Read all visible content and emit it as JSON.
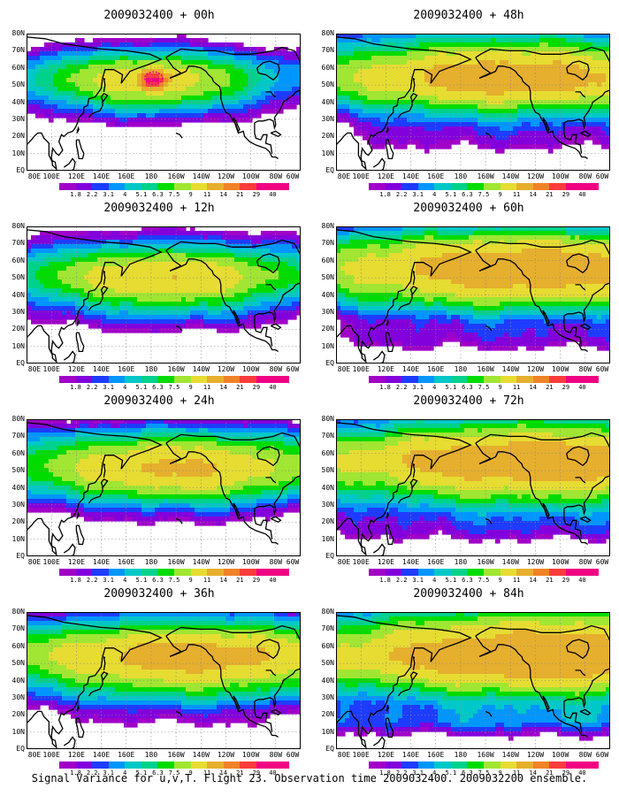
{
  "caption": "Signal Variance for u,v,T. Flight 23. Observation time 2009032400. 2009032200 ensemble.",
  "lat_labels": [
    "80N",
    "70N",
    "60N",
    "50N",
    "40N",
    "30N",
    "20N",
    "10N",
    "EQ"
  ],
  "lon_labels": [
    "80E",
    "100E",
    "120E",
    "140E",
    "160E",
    "180",
    "160W",
    "140W",
    "120W",
    "100W",
    "80W",
    "60W"
  ],
  "colorbar_labels": [
    "1.8",
    "2.2",
    "3.1",
    "4",
    "5.1",
    "6.3",
    "7.5",
    "9",
    "11",
    "14",
    "21",
    "29",
    "40"
  ],
  "colorbar_colors": [
    "#a000c8",
    "#8200dc",
    "#1e3cff",
    "#0096ff",
    "#00c8c8",
    "#00d28c",
    "#00dc00",
    "#a0e632",
    "#e6dc32",
    "#e6af2d",
    "#f08228",
    "#fa3c3c",
    "#f00082"
  ],
  "panels": [
    {
      "title": "2009032400 + 00h",
      "spread": 0.3,
      "center": [
        178,
        52
      ],
      "hotspot": true
    },
    {
      "title": "2009032400 + 12h",
      "spread": 0.45,
      "center": [
        -168,
        48
      ]
    },
    {
      "title": "2009032400 + 24h",
      "spread": 0.55,
      "center": [
        -160,
        50
      ]
    },
    {
      "title": "2009032400 + 36h",
      "spread": 0.7,
      "center": [
        -150,
        52
      ]
    },
    {
      "title": "2009032400 + 48h",
      "spread": 0.75,
      "center": [
        -140,
        55
      ]
    },
    {
      "title": "2009032400 + 60h",
      "spread": 0.85,
      "center": [
        -130,
        55
      ]
    },
    {
      "title": "2009032400 + 72h",
      "spread": 0.9,
      "center": [
        -120,
        55
      ]
    },
    {
      "title": "2009032400 + 84h",
      "spread": 1.0,
      "center": [
        -110,
        55
      ]
    }
  ]
}
